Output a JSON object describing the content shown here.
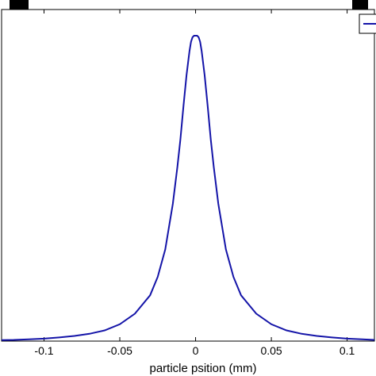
{
  "chart_data": {
    "type": "line",
    "title": "",
    "xlabel": "particle psition (mm)",
    "ylabel": "",
    "xlim": [
      -0.128,
      0.118
    ],
    "ylim": [
      0,
      1.08
    ],
    "xticks": [
      -0.1,
      -0.05,
      0,
      0.05,
      0.1
    ],
    "xtick_labels": [
      "-0.1",
      "-0.05",
      "0",
      "0.05",
      "0.1"
    ],
    "grid": false,
    "legend": "top-right",
    "colors": {
      "series": "#1414a8",
      "axis": "#000000"
    },
    "series": [
      {
        "x": [
          -0.128,
          -0.12,
          -0.11,
          -0.1,
          -0.09,
          -0.08,
          -0.07,
          -0.06,
          -0.05,
          -0.04,
          -0.03,
          -0.025,
          -0.02,
          -0.015,
          -0.012,
          -0.01,
          -0.008,
          -0.006,
          -0.005,
          -0.004,
          -0.003,
          -0.002,
          -0.001,
          0,
          0.001,
          0.002,
          0.003,
          0.004,
          0.005,
          0.006,
          0.008,
          0.01,
          0.012,
          0.015,
          0.02,
          0.025,
          0.03,
          0.04,
          0.05,
          0.06,
          0.07,
          0.08,
          0.09,
          0.1,
          0.11,
          0.118
        ],
        "y": [
          0.003,
          0.004,
          0.006,
          0.008,
          0.012,
          0.017,
          0.024,
          0.035,
          0.055,
          0.09,
          0.15,
          0.21,
          0.3,
          0.45,
          0.57,
          0.66,
          0.77,
          0.87,
          0.91,
          0.95,
          0.98,
          0.995,
          1.0,
          1.0,
          1.0,
          0.995,
          0.98,
          0.95,
          0.91,
          0.87,
          0.77,
          0.66,
          0.57,
          0.45,
          0.3,
          0.21,
          0.15,
          0.09,
          0.055,
          0.035,
          0.024,
          0.017,
          0.012,
          0.008,
          0.006,
          0.004
        ]
      }
    ]
  }
}
